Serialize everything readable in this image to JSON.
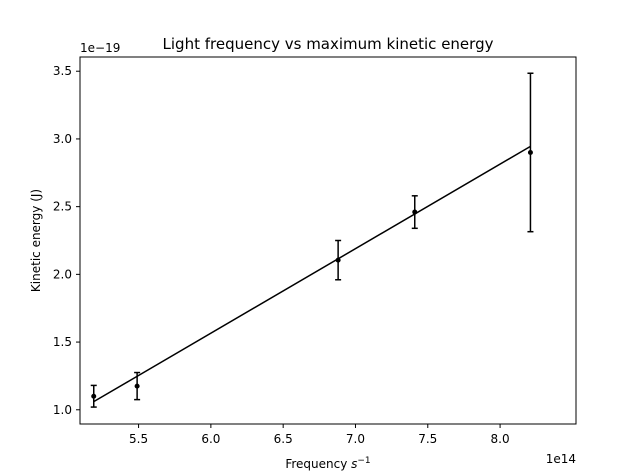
{
  "chart_data": {
    "type": "scatter",
    "title": "Light frequency vs maximum kinetic energy",
    "xlabel_main": "Frequency ",
    "xlabel_sup": "s",
    "xlabel_exp": "−1",
    "ylabel": "Kinetic energy (J)",
    "x_offset_label": "1e14",
    "y_offset_label": "1e−19",
    "xlim": [
      5.095,
      8.525
    ],
    "ylim": [
      0.895,
      3.605
    ],
    "xticks": [
      {
        "v": 5.5,
        "label": "5.5"
      },
      {
        "v": 6.0,
        "label": "6.0"
      },
      {
        "v": 6.5,
        "label": "6.5"
      },
      {
        "v": 7.0,
        "label": "7.0"
      },
      {
        "v": 7.5,
        "label": "7.5"
      },
      {
        "v": 8.0,
        "label": "8.0"
      }
    ],
    "yticks": [
      {
        "v": 1.0,
        "label": "1.0"
      },
      {
        "v": 1.5,
        "label": "1.5"
      },
      {
        "v": 2.0,
        "label": "2.0"
      },
      {
        "v": 2.5,
        "label": "2.5"
      },
      {
        "v": 3.0,
        "label": "3.0"
      },
      {
        "v": 3.5,
        "label": "3.5"
      }
    ],
    "grid": false,
    "color": "#000000",
    "points": [
      {
        "x": 5.19,
        "y": 1.1,
        "err": 0.08
      },
      {
        "x": 5.49,
        "y": 1.175,
        "err": 0.1
      },
      {
        "x": 6.88,
        "y": 2.105,
        "err": 0.145
      },
      {
        "x": 7.41,
        "y": 2.46,
        "err": 0.12
      },
      {
        "x": 8.21,
        "y": 2.9,
        "err": 0.585
      }
    ],
    "fit_line": {
      "x": [
        5.19,
        8.21
      ],
      "y": [
        1.06,
        2.945
      ]
    }
  }
}
